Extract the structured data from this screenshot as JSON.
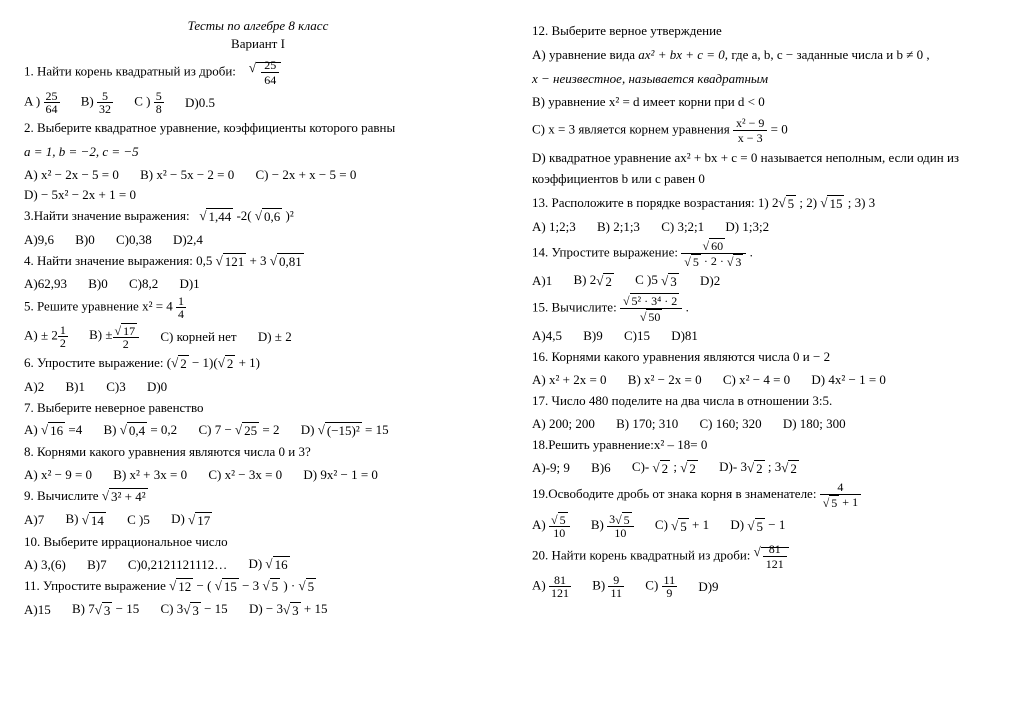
{
  "title": "Тесты по алгебре 8 класс",
  "variant": "Вариант I",
  "left": {
    "q1": "1. Найти корень квадратный из дроби:",
    "q1_frac_num": "25",
    "q1_frac_den": "64",
    "q1a_num": "25",
    "q1a_den": "64",
    "q1b_num": "5",
    "q1b_den": "32",
    "q1c_num": "5",
    "q1c_den": "8",
    "q1d": "D)0.5",
    "q2": "2. Выберите квадратное уравнение, коэффициенты которого равны",
    "q2coef": "a = 1, b = −2, c = −5",
    "q2a": "A)  x² − 2x − 5 = 0",
    "q2b": "B)  x² − 5x − 2 = 0",
    "q2c": "C) − 2x  + x − 5 = 0",
    "q2d": "D) − 5x² − 2x + 1 = 0",
    "q3": "3.Найти значение выражения:",
    "q3expr_a": "1,44",
    "q3expr_mid": " -2(",
    "q3expr_b": "0,6",
    "q3expr_end": " )²",
    "q3a": "A)9,6",
    "q3b": "B)0",
    "q3c": "C)0,38",
    "q3d": "D)2,4",
    "q4": "4. Найти значение выражения:  0,5 ",
    "q4r1": "121",
    "q4mid": "  + 3 ",
    "q4r2": "0,81",
    "q4a": "A)62,93",
    "q4b": "B)0",
    "q4c": "C)8,2",
    "q4d": "D)1",
    "q5": "5. Решите уравнение  x² = 4",
    "q5_mixnum": "1",
    "q5_mixden": "4",
    "q5a_pre": "A) ± 2",
    "q5a_num": "1",
    "q5a_den": "2",
    "q5b_pre": "B) ±",
    "q5b_num_rad": "17",
    "q5b_den": "2",
    "q5c": "C) корней нет",
    "q5d": "D) ± 2",
    "q6": "6. Упростите выражение:  (",
    "q6r": "2",
    "q6mid": " − 1)(",
    "q6r2": "2",
    "q6end": " + 1)",
    "q6a": "A)2",
    "q6b": "B)1",
    "q6c": "C)3",
    "q6d": "D)0",
    "q7": "7. Выберите неверное равенство",
    "q7a_pre": "A) ",
    "q7a_rad": "16",
    "q7a_post": " =4",
    "q7b_pre": "B) ",
    "q7b_rad": "0,4",
    "q7b_post": " = 0,2",
    "q7c_pre": "C)  7 − ",
    "q7c_rad": "25",
    "q7c_post": " = 2",
    "q7d_pre": "D) ",
    "q7d_rad": "(−15)²",
    "q7d_post": " = 15",
    "q8": "8. Корнями какого уравнения являются числа 0 и 3?",
    "q8a": "A)  x² − 9 = 0",
    "q8b": "B)  x² + 3x = 0",
    "q8c": "C)  x² − 3x = 0",
    "q8d": "D) 9x² − 1 = 0",
    "q9": "9. Вычислите ",
    "q9rad": "3² + 4²",
    "q9a": "A)7",
    "q9b_pre": "B) ",
    "q9b_rad": "14",
    "q9c": "C )5",
    "q9d_pre": "D) ",
    "q9d_rad": "17",
    "q10": "10. Выберите иррациональное число",
    "q10a": "A)  3,(6)",
    "q10b": "B)7",
    "q10c": "C)0,2121121112…",
    "q10d_pre": "D) ",
    "q10d_rad": "16",
    "q11": "11. Упростите выражение ",
    "q11_r1": "12",
    "q11_mid1": " − (",
    "q11_r2": "15",
    "q11_mid2": " − 3",
    "q11_r3": "5",
    "q11_mid3": ") · ",
    "q11_r4": "5",
    "q11a": "A)15",
    "q11b_pre": "B) 7",
    "q11b_rad": "3",
    "q11b_post": " − 15",
    "q11c_pre": "C) 3",
    "q11c_rad": "3",
    "q11c_post": " − 15",
    "q11d_pre": "D) − 3",
    "q11d_rad": "3",
    "q11d_post": " + 15"
  },
  "right": {
    "q12": "12. Выберите верное утверждение",
    "q12a_pre": "A) уравнение вида ",
    "q12a_eq": "ax² + bx + c = 0,",
    "q12a_post": " где a,  b,  c − заданные числа и b ≠ 0 ,",
    "q12a_line2": " x − неизвестное, называется квадратным",
    "q12b": "B) уравнение  x² = d  имеет корни при  d < 0",
    "q12c_pre": "C)  x = 3  является корнем уравнения ",
    "q12c_num": "x² − 9",
    "q12c_den": "x − 3",
    "q12c_post": " = 0",
    "q12d": "D) квадратное уравнение  ax² + bx + c = 0  называется неполным, если один из коэффициентов b или c  равен 0",
    "q13": "13. Расположите  в порядке возрастания: 1) 2",
    "q13_r1": "5",
    "q13_m1": " ; 2) ",
    "q13_r2": "15",
    "q13_m2": " ;    3)  3",
    "q13a": "A)  1;2;3",
    "q13b": "B) 2;1;3",
    "q13c": "C) 3;2;1",
    "q13d": "D) 1;3;2",
    "q14": "14. Упростите выражение: ",
    "q14_num_rad": "60",
    "q14_den_r1": "5",
    "q14_den_mid": " · 2 · ",
    "q14_den_r2": "3",
    "q14_post": " .",
    "q14a": "A)1",
    "q14b_pre": "B)  2",
    "q14b_rad": "2",
    "q14c_pre": "C )5 ",
    "q14c_rad": "3",
    "q14d": "D)2",
    "q15": "15. Вычислите: ",
    "q15_num_rad": "5² · 3⁴ · 2",
    "q15_den_rad": "50",
    "q15_post": " .",
    "q15a": "A)4,5",
    "q15b": "B)9",
    "q15c": "C)15",
    "q15d": "D)81",
    "q16": "16. Корнями какого уравнения являются числа 0 и − 2",
    "q16a": "A)  x² + 2x = 0",
    "q16b": "B)  x² − 2x = 0",
    "q16c": "C)  x² − 4 = 0",
    "q16d": "D) 4x² − 1 = 0",
    "q17": "17. Число 480 поделите на два числа в отношении 3:5.",
    "q17a": "A) 200; 200",
    "q17b": "B) 170; 310",
    "q17c": "C) 160; 320",
    "q17d": "D) 180; 300",
    "q18": "18.Решить уравнение:x² – 18= 0",
    "q18a": "A)-9;  9",
    "q18b": "B)6",
    "q18c_pre": "C)-  ",
    "q18c_r1": "2",
    "q18c_mid": " ; ",
    "q18c_r2": "2",
    "q18d_pre": "D)- 3",
    "q18d_r1": "2",
    "q18d_mid": " ;  3",
    "q18d_r2": "2",
    "q19": "19.Освободите дробь от знака корня в знаменателе: ",
    "q19_num": "4",
    "q19_den_rad": "5",
    "q19_den_post": " + 1",
    "q19a_num_rad": "5",
    "q19a_den": "10",
    "q19b_num_pre": "3",
    "q19b_num_rad": "5",
    "q19b_den": "10",
    "q19c_pre": "C) ",
    "q19c_rad": "5",
    "q19c_post": " + 1",
    "q19d_pre": "D) ",
    "q19d_rad": "5",
    "q19d_post": " − 1",
    "q20": "20. Найти корень квадратный из дроби: ",
    "q20_num": "81",
    "q20_den": "121",
    "q20a_num": "81",
    "q20a_den": "121",
    "q20b_num": "9",
    "q20b_den": "11",
    "q20c_num": "11",
    "q20c_den": "9",
    "q20d": "D)9"
  }
}
